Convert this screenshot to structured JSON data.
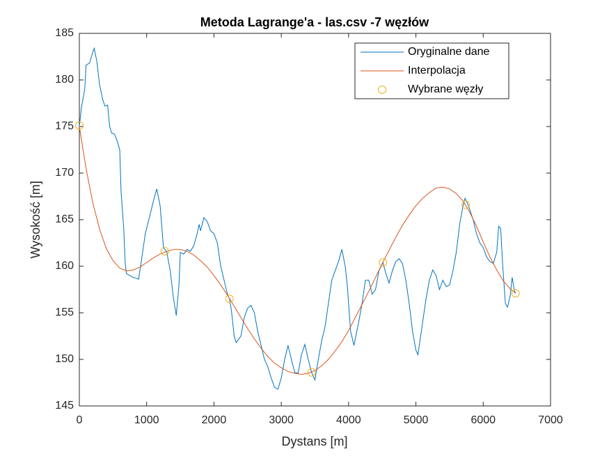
{
  "chart_data": {
    "type": "line",
    "title": "Metoda Lagrange'a - las.csv -7 węzłów",
    "x_label": "Dystans [m]",
    "y_label": "Wysokość [m]",
    "xlim": [
      0,
      7000
    ],
    "xticks": [
      0,
      1000,
      2000,
      3000,
      4000,
      5000,
      6000,
      7000
    ],
    "ylim": [
      145,
      185
    ],
    "yticks": [
      145,
      150,
      155,
      160,
      165,
      170,
      175,
      180,
      185
    ],
    "grid": false,
    "legend": "top-right",
    "series": [
      {
        "name": "Oryginalne dane",
        "color": "#0072BD",
        "style": "line",
        "x": [
          0,
          30,
          80,
          100,
          150,
          180,
          220,
          260,
          300,
          350,
          380,
          420,
          450,
          480,
          520,
          560,
          600,
          620,
          660,
          680,
          700,
          750,
          800,
          850,
          880,
          920,
          980,
          1050,
          1100,
          1150,
          1200,
          1250,
          1300,
          1350,
          1400,
          1440,
          1480,
          1500,
          1550,
          1600,
          1650,
          1700,
          1750,
          1780,
          1800,
          1850,
          1900,
          1950,
          2000,
          2050,
          2100,
          2150,
          2200,
          2230,
          2260,
          2300,
          2330,
          2400,
          2450,
          2500,
          2550,
          2600,
          2650,
          2700,
          2750,
          2800,
          2850,
          2900,
          2950,
          3000,
          3050,
          3100,
          3150,
          3200,
          3250,
          3300,
          3350,
          3400,
          3450,
          3500,
          3550,
          3600,
          3650,
          3700,
          3750,
          3800,
          3850,
          3900,
          3950,
          3980,
          4030,
          4080,
          4150,
          4200,
          4250,
          4300,
          4350,
          4400,
          4450,
          4510,
          4550,
          4600,
          4650,
          4700,
          4750,
          4800,
          4850,
          4900,
          4950,
          5000,
          5030,
          5080,
          5150,
          5200,
          5250,
          5300,
          5350,
          5400,
          5450,
          5500,
          5550,
          5600,
          5650,
          5700,
          5730,
          5780,
          5850,
          5900,
          5950,
          6000,
          6050,
          6100,
          6150,
          6200,
          6230,
          6260,
          6290,
          6330,
          6360,
          6400,
          6430,
          6460,
          6480
        ],
        "values": [
          175,
          177,
          179,
          181.6,
          181.8,
          182.5,
          183.4,
          182,
          179.5,
          177.8,
          177.2,
          177.3,
          175,
          174.3,
          174.2,
          173.5,
          172.5,
          168,
          164,
          160.4,
          159.2,
          159,
          158.8,
          158.7,
          158.6,
          160.5,
          163.5,
          165.5,
          167,
          168.3,
          166.5,
          162,
          161.5,
          159.5,
          156.5,
          154.7,
          158,
          161.5,
          161.3,
          161.8,
          161.6,
          162.2,
          163.5,
          164.5,
          163.8,
          165.2,
          164.8,
          163.8,
          163.5,
          162.5,
          160,
          158.5,
          157,
          156.5,
          155.2,
          152.5,
          151.8,
          152.5,
          154.5,
          155.5,
          155.8,
          155,
          153,
          151.5,
          150,
          149.2,
          148,
          147,
          146.8,
          148,
          150,
          151.5,
          150,
          148.6,
          148.5,
          150.5,
          151.6,
          150,
          148.6,
          147.8,
          150,
          152,
          153.5,
          156,
          158.5,
          159.5,
          160.5,
          161.8,
          160,
          158,
          153,
          151.5,
          154,
          156,
          158.5,
          158.5,
          157,
          157.5,
          159.5,
          160.4,
          159.3,
          158.2,
          159.5,
          160.5,
          160.8,
          160.3,
          158.5,
          156,
          153,
          151,
          150.5,
          153,
          156.5,
          158.5,
          159.6,
          159,
          157.5,
          158.5,
          157.8,
          158,
          159.5,
          161.5,
          164.5,
          166.5,
          167.3,
          166.5,
          165,
          163.5,
          162.5,
          162,
          161,
          160.5,
          160.3,
          161.5,
          164.3,
          164,
          160,
          156,
          155.6,
          156.8,
          158.8,
          157.5,
          157.1
        ]
      },
      {
        "name": "Interpolacja",
        "color": "#D95319",
        "style": "line",
        "x": [
          0,
          100,
          200,
          300,
          400,
          500,
          600,
          700,
          800,
          900,
          1000,
          1100,
          1200,
          1300,
          1400,
          1500,
          1600,
          1700,
          1800,
          1900,
          2000,
          2100,
          2200,
          2300,
          2400,
          2500,
          2600,
          2700,
          2800,
          2900,
          3000,
          3100,
          3200,
          3300,
          3400,
          3500,
          3600,
          3700,
          3800,
          3900,
          4000,
          4100,
          4200,
          4300,
          4400,
          4500,
          4600,
          4700,
          4800,
          4900,
          5000,
          5100,
          5200,
          5300,
          5400,
          5500,
          5600,
          5700,
          5800,
          5900,
          6000,
          6100,
          6200,
          6300,
          6400,
          6480
        ],
        "values": [
          175,
          170.5,
          166.8,
          164,
          161.9,
          160.6,
          159.8,
          159.5,
          159.6,
          159.9,
          160.4,
          160.9,
          161.3,
          161.6,
          161.8,
          161.8,
          161.6,
          161.2,
          160.6,
          159.9,
          159,
          158,
          156.9,
          155.7,
          154.5,
          153.3,
          152.2,
          151.2,
          150.3,
          149.6,
          149.1,
          148.7,
          148.5,
          148.4,
          148.5,
          148.8,
          149.3,
          150,
          150.9,
          151.9,
          153.1,
          154.5,
          155.9,
          157.3,
          158.8,
          160.3,
          161.7,
          163.1,
          164.4,
          165.5,
          166.5,
          167.3,
          167.9,
          168.4,
          168.5,
          168.3,
          167.8,
          167,
          165.8,
          164.3,
          162.6,
          161,
          159.6,
          158.4,
          157.6,
          157.1
        ]
      },
      {
        "name": "Wybrane węzły",
        "color": "#EDB120",
        "style": "markers",
        "x": [
          0,
          1270,
          2230,
          3450,
          4510,
          5740,
          6480
        ],
        "values": [
          175.1,
          161.6,
          156.5,
          148.6,
          160.4,
          166.6,
          157.1
        ]
      }
    ]
  }
}
